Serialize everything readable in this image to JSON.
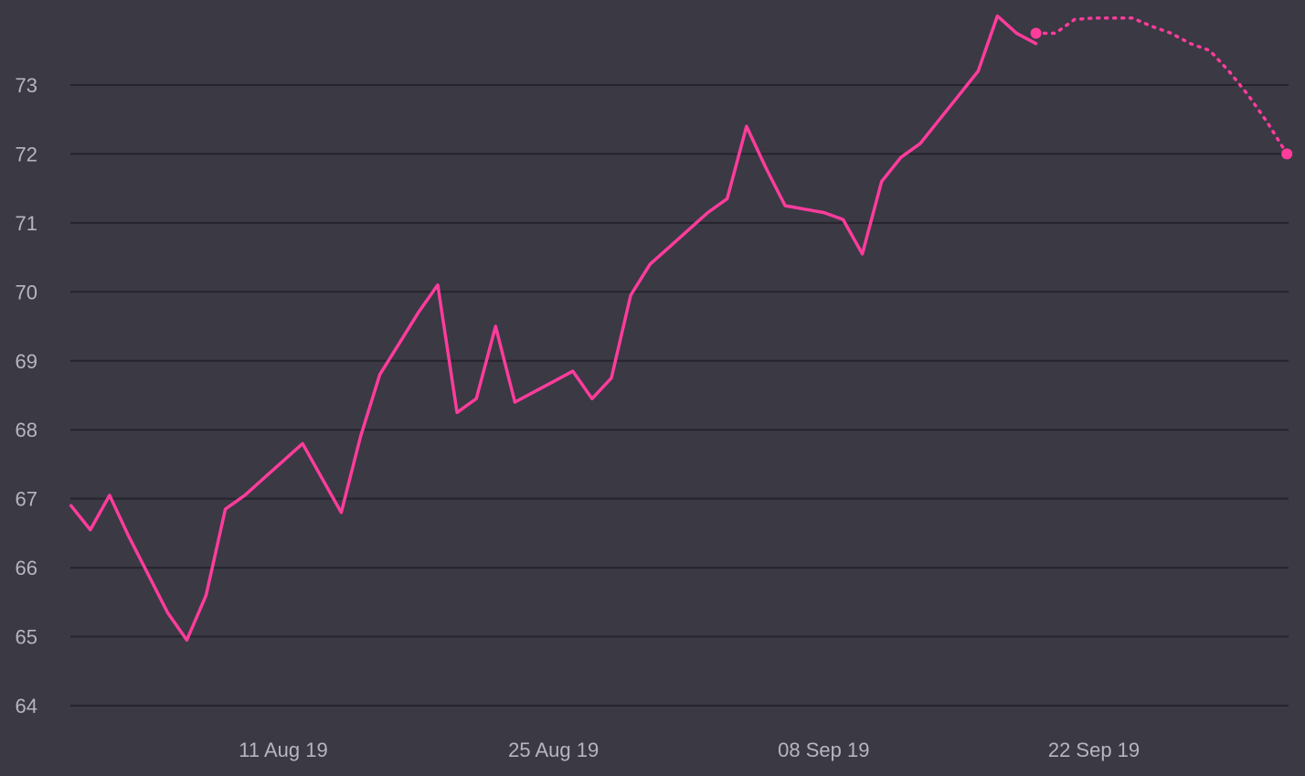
{
  "chart_data": {
    "type": "line",
    "title": "",
    "xlabel": "",
    "ylabel": "",
    "ylim": [
      64,
      74
    ],
    "xlim": [
      "2019-07-31",
      "2019-10-02"
    ],
    "grid": true,
    "legend": "none",
    "y_ticks": [
      "64",
      "65",
      "66",
      "67",
      "68",
      "69",
      "70",
      "71",
      "72",
      "73"
    ],
    "x_ticks": [
      {
        "date": "2019-08-11",
        "label": "11 Aug 19"
      },
      {
        "date": "2019-08-25",
        "label": "25 Aug 19"
      },
      {
        "date": "2019-09-08",
        "label": "08 Sep 19"
      },
      {
        "date": "2019-09-22",
        "label": "22 Sep 19"
      }
    ],
    "colors": {
      "background": "#3a3944",
      "grid": "#26252d",
      "series": "#ff3c9c",
      "tick_text": "#b6b5c0"
    },
    "series": [
      {
        "style": "solid",
        "x": [
          "2019-07-31",
          "2019-08-01",
          "2019-08-02",
          "2019-08-03",
          "2019-08-04",
          "2019-08-05",
          "2019-08-06",
          "2019-08-07",
          "2019-08-08",
          "2019-08-09",
          "2019-08-10",
          "2019-08-11",
          "2019-08-12",
          "2019-08-13",
          "2019-08-14",
          "2019-08-15",
          "2019-08-16",
          "2019-08-17",
          "2019-08-18",
          "2019-08-19",
          "2019-08-20",
          "2019-08-21",
          "2019-08-22",
          "2019-08-23",
          "2019-08-24",
          "2019-08-25",
          "2019-08-26",
          "2019-08-27",
          "2019-08-28",
          "2019-08-29",
          "2019-08-30",
          "2019-08-31",
          "2019-09-01",
          "2019-09-02",
          "2019-09-03",
          "2019-09-04",
          "2019-09-05",
          "2019-09-06",
          "2019-09-07",
          "2019-09-08",
          "2019-09-09",
          "2019-09-10",
          "2019-09-11",
          "2019-09-12",
          "2019-09-13",
          "2019-09-14",
          "2019-09-15",
          "2019-09-16",
          "2019-09-17",
          "2019-09-18",
          "2019-09-19"
        ],
        "values": [
          66.9,
          66.55,
          67.05,
          66.45,
          65.9,
          65.35,
          64.95,
          65.6,
          66.85,
          67.05,
          67.3,
          67.55,
          67.8,
          67.3,
          66.8,
          67.9,
          68.8,
          69.25,
          69.7,
          70.1,
          68.25,
          68.45,
          69.5,
          68.4,
          68.55,
          68.7,
          68.85,
          68.45,
          68.75,
          69.95,
          70.4,
          70.65,
          70.9,
          71.15,
          71.35,
          72.4,
          71.8,
          71.25,
          71.2,
          71.15,
          71.05,
          70.55,
          71.6,
          71.95,
          72.15,
          72.5,
          72.85,
          73.2,
          74.0,
          73.75,
          73.6
        ]
      },
      {
        "style": "dotted",
        "x": [
          "2019-09-19",
          "2019-09-20",
          "2019-09-21",
          "2019-09-22",
          "2019-09-23",
          "2019-09-24",
          "2019-09-25",
          "2019-09-26",
          "2019-09-27",
          "2019-09-28",
          "2019-09-29",
          "2019-09-30",
          "2019-10-01",
          "2019-10-02"
        ],
        "values": [
          73.75,
          73.75,
          73.95,
          73.97,
          73.97,
          73.97,
          73.85,
          73.75,
          73.6,
          73.5,
          73.2,
          72.85,
          72.45,
          72.0
        ]
      }
    ]
  }
}
